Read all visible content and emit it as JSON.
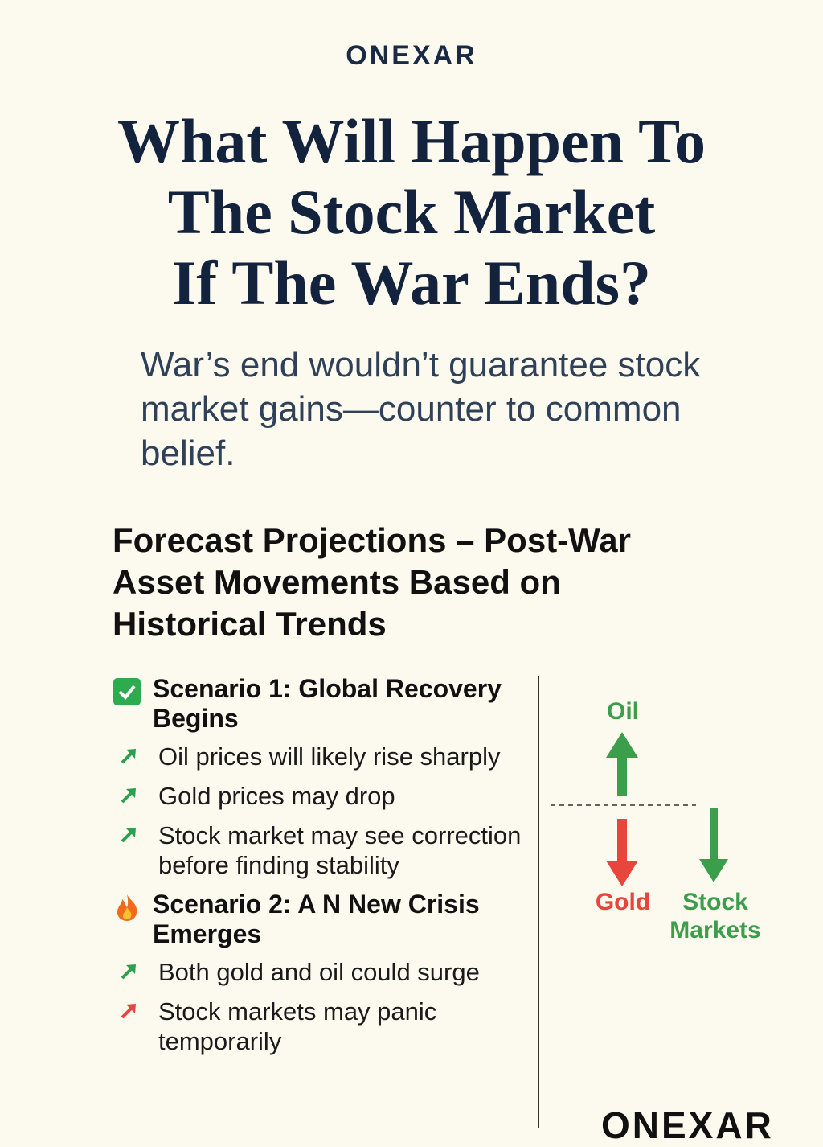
{
  "brand": "ONEXAR",
  "title_lines": [
    "What Will Happen To",
    "The Stock Market",
    "If The War Ends?"
  ],
  "subtitle": "War’s end wouldn’t guarantee stock market gains—counter to common belief.",
  "heading": "Forecast Projections – Post-War Asset Movements Based on Historical Trends",
  "scenarios": [
    {
      "title": "Scenario 1: Global Recovery Begins",
      "icon": "check",
      "bullets": [
        {
          "text": "Oil  prices will likely rise sharply",
          "color": "#2e9e4f"
        },
        {
          "text": "Gold prices may drop",
          "color": "#2e9e4f"
        },
        {
          "text": "Stock market may see correction before finding stability",
          "color": "#2e9e4f"
        }
      ]
    },
    {
      "title": "Scenario 2: A N New Crisis Emerges",
      "icon": "fire",
      "bullets": [
        {
          "text": "Both gold and oil could surge",
          "color": "#2e9e4f"
        },
        {
          "text": "Stock markets may panic temporarily",
          "color": "#e8453c"
        }
      ]
    }
  ],
  "diagram": {
    "oil": {
      "label": "Oil",
      "color": "#3a9e4a"
    },
    "gold": {
      "label": "Gold",
      "color": "#e8453c"
    },
    "stocks": {
      "label": "Stock Markets",
      "color": "#3a9e4a"
    }
  },
  "footer_brand": "ONEXAR"
}
